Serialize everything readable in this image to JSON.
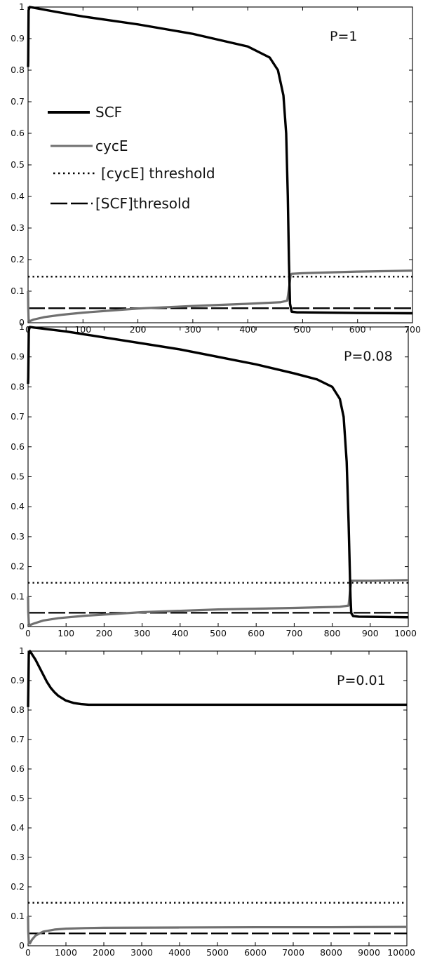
{
  "chart_data": [
    {
      "type": "line",
      "panel_label": "P=1",
      "xlim": [
        0,
        700
      ],
      "ylim": [
        0,
        1
      ],
      "xticks": [
        "0",
        "100",
        "200",
        "300",
        "400",
        "500",
        "600",
        "700"
      ],
      "yticks": [
        "0",
        "0.1",
        "0.2",
        "0.3",
        "0.4",
        "0.5",
        "0.6",
        "0.7",
        "0.8",
        "0.9",
        "1"
      ],
      "legend": {
        "placement": "upper-left",
        "entries": [
          {
            "label": "SCF",
            "style": "thick-solid",
            "color": "#000000"
          },
          {
            "label": "cycE",
            "style": "solid",
            "color": "#707070"
          },
          {
            "label": "[cycE] threshold",
            "style": "dotted",
            "color": "#000000"
          },
          {
            "label": "[SCF]thresold",
            "style": "dashed",
            "color": "#000000"
          }
        ]
      },
      "series": [
        {
          "name": "SCF",
          "color": "#000000",
          "style": "thick-solid",
          "x": [
            0,
            0.3,
            1,
            3,
            10,
            50,
            100,
            200,
            300,
            400,
            440,
            455,
            465,
            470,
            473,
            475,
            477,
            480,
            490,
            500,
            600,
            700
          ],
          "y": [
            0.81,
            0.83,
            0.99,
            1.0,
            0.998,
            0.985,
            0.97,
            0.945,
            0.915,
            0.875,
            0.84,
            0.8,
            0.72,
            0.6,
            0.4,
            0.2,
            0.06,
            0.035,
            0.033,
            0.033,
            0.031,
            0.03
          ]
        },
        {
          "name": "cycE",
          "color": "#707070",
          "style": "solid",
          "x": [
            0,
            0.3,
            1,
            3,
            10,
            30,
            60,
            100,
            200,
            300,
            400,
            460,
            472,
            476,
            478,
            480,
            500,
            600,
            700
          ],
          "y": [
            0.1,
            0.05,
            0.01,
            0.005,
            0.01,
            0.018,
            0.025,
            0.032,
            0.045,
            0.053,
            0.06,
            0.065,
            0.07,
            0.12,
            0.15,
            0.155,
            0.157,
            0.162,
            0.165
          ]
        },
        {
          "name": "[cycE] threshold",
          "color": "#000000",
          "style": "dotted",
          "x": [
            0,
            700
          ],
          "y": [
            0.146,
            0.146
          ]
        },
        {
          "name": "[SCF]thresold",
          "color": "#000000",
          "style": "dashed",
          "x": [
            0,
            700
          ],
          "y": [
            0.046,
            0.046
          ]
        }
      ]
    },
    {
      "type": "line",
      "panel_label": "P=0.08",
      "xlim": [
        0,
        1000
      ],
      "ylim": [
        0,
        1
      ],
      "xticks": [
        "0",
        "100",
        "200",
        "300",
        "400",
        "500",
        "600",
        "700",
        "800",
        "900",
        "1000"
      ],
      "yticks": [
        "0",
        "0.1",
        "0.2",
        "0.3",
        "0.4",
        "0.5",
        "0.6",
        "0.7",
        "0.8",
        "0.9",
        "1"
      ],
      "series": [
        {
          "name": "SCF",
          "color": "#000000",
          "style": "thick-solid",
          "x": [
            0,
            0.5,
            2,
            5,
            15,
            100,
            200,
            300,
            400,
            500,
            600,
            700,
            760,
            800,
            820,
            830,
            838,
            843,
            846,
            848,
            850,
            855,
            870,
            1000
          ],
          "y": [
            0.81,
            0.83,
            0.99,
            1.0,
            0.998,
            0.985,
            0.965,
            0.945,
            0.925,
            0.9,
            0.875,
            0.845,
            0.825,
            0.8,
            0.76,
            0.7,
            0.55,
            0.35,
            0.2,
            0.1,
            0.045,
            0.035,
            0.033,
            0.031
          ]
        },
        {
          "name": "cycE",
          "color": "#707070",
          "style": "solid",
          "x": [
            0,
            0.5,
            2,
            5,
            15,
            40,
            80,
            150,
            300,
            500,
            700,
            820,
            843,
            847,
            850,
            900,
            1000
          ],
          "y": [
            0.1,
            0.05,
            0.01,
            0.005,
            0.01,
            0.02,
            0.028,
            0.036,
            0.048,
            0.057,
            0.062,
            0.066,
            0.07,
            0.12,
            0.153,
            0.153,
            0.155
          ]
        },
        {
          "name": "[cycE] threshold",
          "color": "#000000",
          "style": "dotted",
          "x": [
            0,
            1000
          ],
          "y": [
            0.146,
            0.146
          ]
        },
        {
          "name": "[SCF]thresold",
          "color": "#000000",
          "style": "dashed",
          "x": [
            0,
            1000
          ],
          "y": [
            0.046,
            0.046
          ]
        }
      ]
    },
    {
      "type": "line",
      "panel_label": "P=0.01",
      "xlim": [
        0,
        10000
      ],
      "ylim": [
        0,
        1
      ],
      "xticks": [
        "0",
        "1000",
        "2000",
        "3000",
        "4000",
        "5000",
        "6000",
        "7000",
        "8000",
        "9000",
        "10000"
      ],
      "yticks": [
        "0",
        "0.1",
        "0.2",
        "0.3",
        "0.4",
        "0.5",
        "0.6",
        "0.7",
        "0.8",
        "0.9",
        "1"
      ],
      "series": [
        {
          "name": "SCF",
          "color": "#000000",
          "style": "thick-solid",
          "x": [
            0,
            5,
            20,
            50,
            100,
            200,
            300,
            400,
            500,
            600,
            700,
            800,
            1000,
            1200,
            1400,
            1600,
            2000,
            4000,
            6000,
            8000,
            10000
          ],
          "y": [
            0.81,
            0.85,
            0.99,
            1.0,
            0.99,
            0.97,
            0.945,
            0.92,
            0.895,
            0.875,
            0.86,
            0.848,
            0.832,
            0.824,
            0.82,
            0.818,
            0.818,
            0.818,
            0.818,
            0.818,
            0.818
          ]
        },
        {
          "name": "cycE",
          "color": "#707070",
          "style": "solid",
          "x": [
            0,
            5,
            20,
            50,
            100,
            200,
            400,
            700,
            1000,
            1500,
            2000,
            4000,
            6000,
            8000,
            10000
          ],
          "y": [
            0.1,
            0.05,
            0.01,
            0.008,
            0.02,
            0.035,
            0.048,
            0.055,
            0.058,
            0.06,
            0.061,
            0.062,
            0.063,
            0.063,
            0.064
          ]
        },
        {
          "name": "[cycE] threshold",
          "color": "#000000",
          "style": "dotted",
          "x": [
            0,
            10000
          ],
          "y": [
            0.146,
            0.146
          ]
        },
        {
          "name": "[SCF]thresold",
          "color": "#000000",
          "style": "dashed",
          "x": [
            0,
            10000
          ],
          "y": [
            0.042,
            0.042
          ]
        }
      ]
    }
  ]
}
